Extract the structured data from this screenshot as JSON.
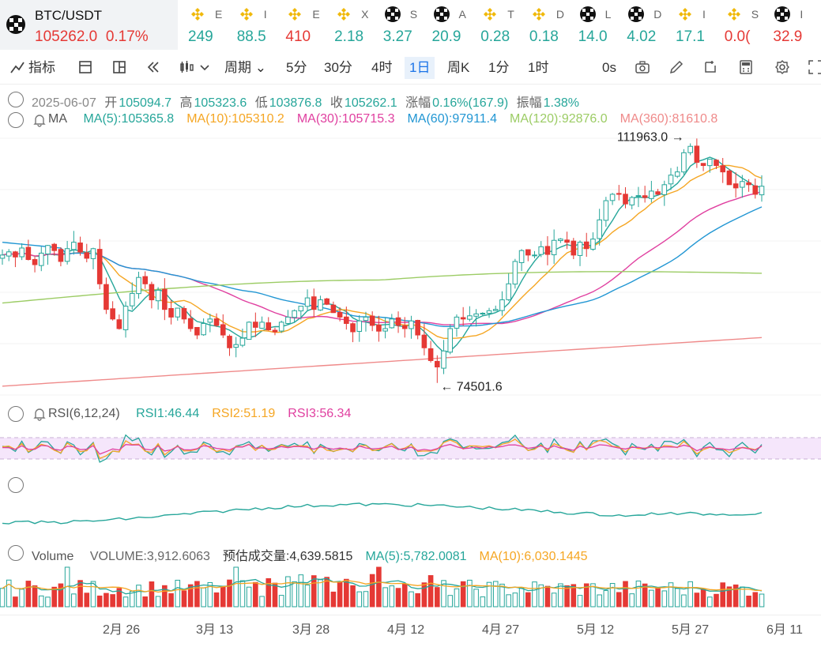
{
  "tabs": {
    "main": {
      "symbol": "BTC/USDT",
      "price": "105262.0",
      "change": "0.17%"
    },
    "others": [
      {
        "letter": "E",
        "value": "249",
        "color": "#26a69a",
        "icon": "bnb"
      },
      {
        "letter": "I",
        "value": "88.5",
        "color": "#26a69a",
        "icon": "bnb"
      },
      {
        "letter": "E",
        "value": "410",
        "color": "#e53935",
        "icon": "bnb"
      },
      {
        "letter": "X",
        "value": "2.18",
        "color": "#26a69a",
        "icon": "bnb"
      },
      {
        "letter": "S",
        "value": "3.27",
        "color": "#26a69a",
        "icon": "okx"
      },
      {
        "letter": "A",
        "value": "20.9",
        "color": "#26a69a",
        "icon": "okx"
      },
      {
        "letter": "T",
        "value": "0.28",
        "color": "#26a69a",
        "icon": "bnb"
      },
      {
        "letter": "D",
        "value": "0.18",
        "color": "#26a69a",
        "icon": "bnb"
      },
      {
        "letter": "L",
        "value": "14.0",
        "color": "#26a69a",
        "icon": "okx"
      },
      {
        "letter": "D",
        "value": "4.02",
        "color": "#26a69a",
        "icon": "okx"
      },
      {
        "letter": "I",
        "value": "17.1",
        "color": "#26a69a",
        "icon": "bnb"
      },
      {
        "letter": "S",
        "value": "0.0(",
        "color": "#e53935",
        "icon": "bnb"
      },
      {
        "letter": "I",
        "value": "32.9",
        "color": "#e53935",
        "icon": "okx"
      }
    ]
  },
  "toolbar": {
    "indicator": "指标",
    "period": "周期",
    "intervals": [
      "5分",
      "30分",
      "4时",
      "1日",
      "周K",
      "1分",
      "1时"
    ],
    "active_interval": "1日",
    "seconds": "0s"
  },
  "ohlc": {
    "date": "2025-06-07",
    "open_label": "开",
    "open": "105094.7",
    "high_label": "高",
    "high": "105323.6",
    "low_label": "低",
    "low": "103876.8",
    "close_label": "收",
    "close": "105262.1",
    "change_label": "涨幅",
    "change": "0.16%(167.9)",
    "amp_label": "振幅",
    "amp": "1.38%"
  },
  "ma": {
    "label": "MA",
    "items": [
      {
        "text": "MA(5):105365.8",
        "color": "#26a69a"
      },
      {
        "text": "MA(10):105310.2",
        "color": "#f5a623"
      },
      {
        "text": "MA(30):105715.3",
        "color": "#e040a0"
      },
      {
        "text": "MA(60):97911.4",
        "color": "#2196d3"
      },
      {
        "text": "MA(120):92876.0",
        "color": "#9ccc65"
      },
      {
        "text": "MA(360):81610.8",
        "color": "#ef8a8a"
      }
    ]
  },
  "annotations": {
    "high": "111963.0",
    "low": "74501.6"
  },
  "rsi": {
    "label": "RSI(6,12,24)",
    "items": [
      {
        "text": "RSI1:46.44",
        "color": "#26a69a"
      },
      {
        "text": "RSI2:51.19",
        "color": "#f5a623"
      },
      {
        "text": "RSI3:56.34",
        "color": "#e040a0"
      }
    ]
  },
  "volume": {
    "label": "Volume",
    "items": [
      {
        "text": "VOLUME:3,912.6063",
        "color": "#666"
      },
      {
        "text": "预估成交量:4,639.5815",
        "color": "#333"
      },
      {
        "text": "MA(5):5,782.0081",
        "color": "#26a69a"
      },
      {
        "text": "MA(10):6,030.1445",
        "color": "#f5a623"
      }
    ]
  },
  "xaxis": [
    "2月 26",
    "3月 13",
    "3月 28",
    "4月 12",
    "4月 27",
    "5月 12",
    "5月 27",
    "6月 11"
  ],
  "colors": {
    "up": "#26a69a",
    "down": "#e53935"
  },
  "chart_data": {
    "type": "candlestick",
    "ohlc_path_close": [
      94500,
      95000,
      94200,
      95600,
      93800,
      93000,
      94800,
      96000,
      95200,
      93500,
      95500,
      96500,
      95000,
      94000,
      95500,
      90000,
      86000,
      84500,
      83000,
      86500,
      88500,
      91000,
      90000,
      87500,
      89000,
      86000,
      84800,
      86200,
      84500,
      83000,
      82000,
      83800,
      84500,
      83500,
      82000,
      80000,
      80500,
      81500,
      84000,
      83200,
      84000,
      82800,
      82500,
      84000,
      84800,
      85800,
      86500,
      87800,
      86000,
      87500,
      86800,
      85500,
      84800,
      83800,
      82500,
      84200,
      84800,
      83500,
      82600,
      83000,
      84500,
      83500,
      83000,
      84200,
      82000,
      80000,
      78000,
      77000,
      79500,
      83000,
      84800,
      84500,
      85000,
      85300,
      85400,
      85800,
      86000,
      87500,
      90000,
      93500,
      95200,
      94500,
      94500,
      95800,
      94600,
      96800,
      97000,
      96500,
      94500,
      96500,
      95500,
      97000,
      100000,
      103000,
      104000,
      104000,
      102500,
      103500,
      103800,
      103500,
      104500,
      104000,
      105500,
      107000,
      107500,
      110500,
      111500,
      109000,
      108500,
      109500,
      108500,
      107500,
      105500,
      105000,
      106000,
      105500,
      104000,
      105262
    ],
    "high": 111963.0,
    "low": 74501.6,
    "ma_lines": [
      "MA(5)",
      "MA(10)",
      "MA(30)",
      "MA(60)",
      "MA(120)",
      "MA(360)"
    ]
  }
}
